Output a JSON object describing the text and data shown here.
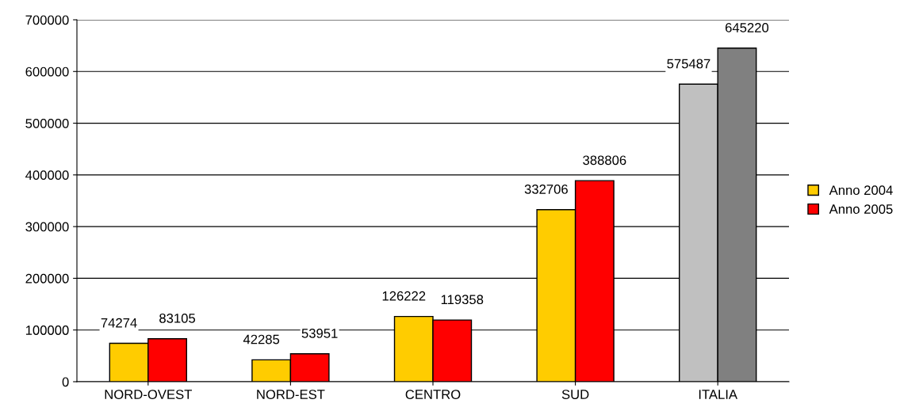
{
  "chart_data": {
    "type": "bar",
    "categories": [
      "NORD-OVEST",
      "NORD-EST",
      "CENTRO",
      "SUD",
      "ITALIA"
    ],
    "series": [
      {
        "name": "Anno 2004",
        "color": "#ffcc00",
        "colors": [
          "#ffcc00",
          "#ffcc00",
          "#ffcc00",
          "#ffcc00",
          "#c0c0c0"
        ],
        "values": [
          74274,
          42285,
          126222,
          332706,
          575487
        ]
      },
      {
        "name": "Anno 2005",
        "color": "#ff0000",
        "colors": [
          "#ff0000",
          "#ff0000",
          "#ff0000",
          "#ff0000",
          "#808080"
        ],
        "values": [
          83105,
          53951,
          119358,
          388806,
          645220
        ]
      }
    ],
    "ylim": [
      0,
      700000
    ],
    "yticks": [
      0,
      100000,
      200000,
      300000,
      400000,
      500000,
      600000,
      700000
    ],
    "grid": "y",
    "legend": "right",
    "data_labels": true
  }
}
